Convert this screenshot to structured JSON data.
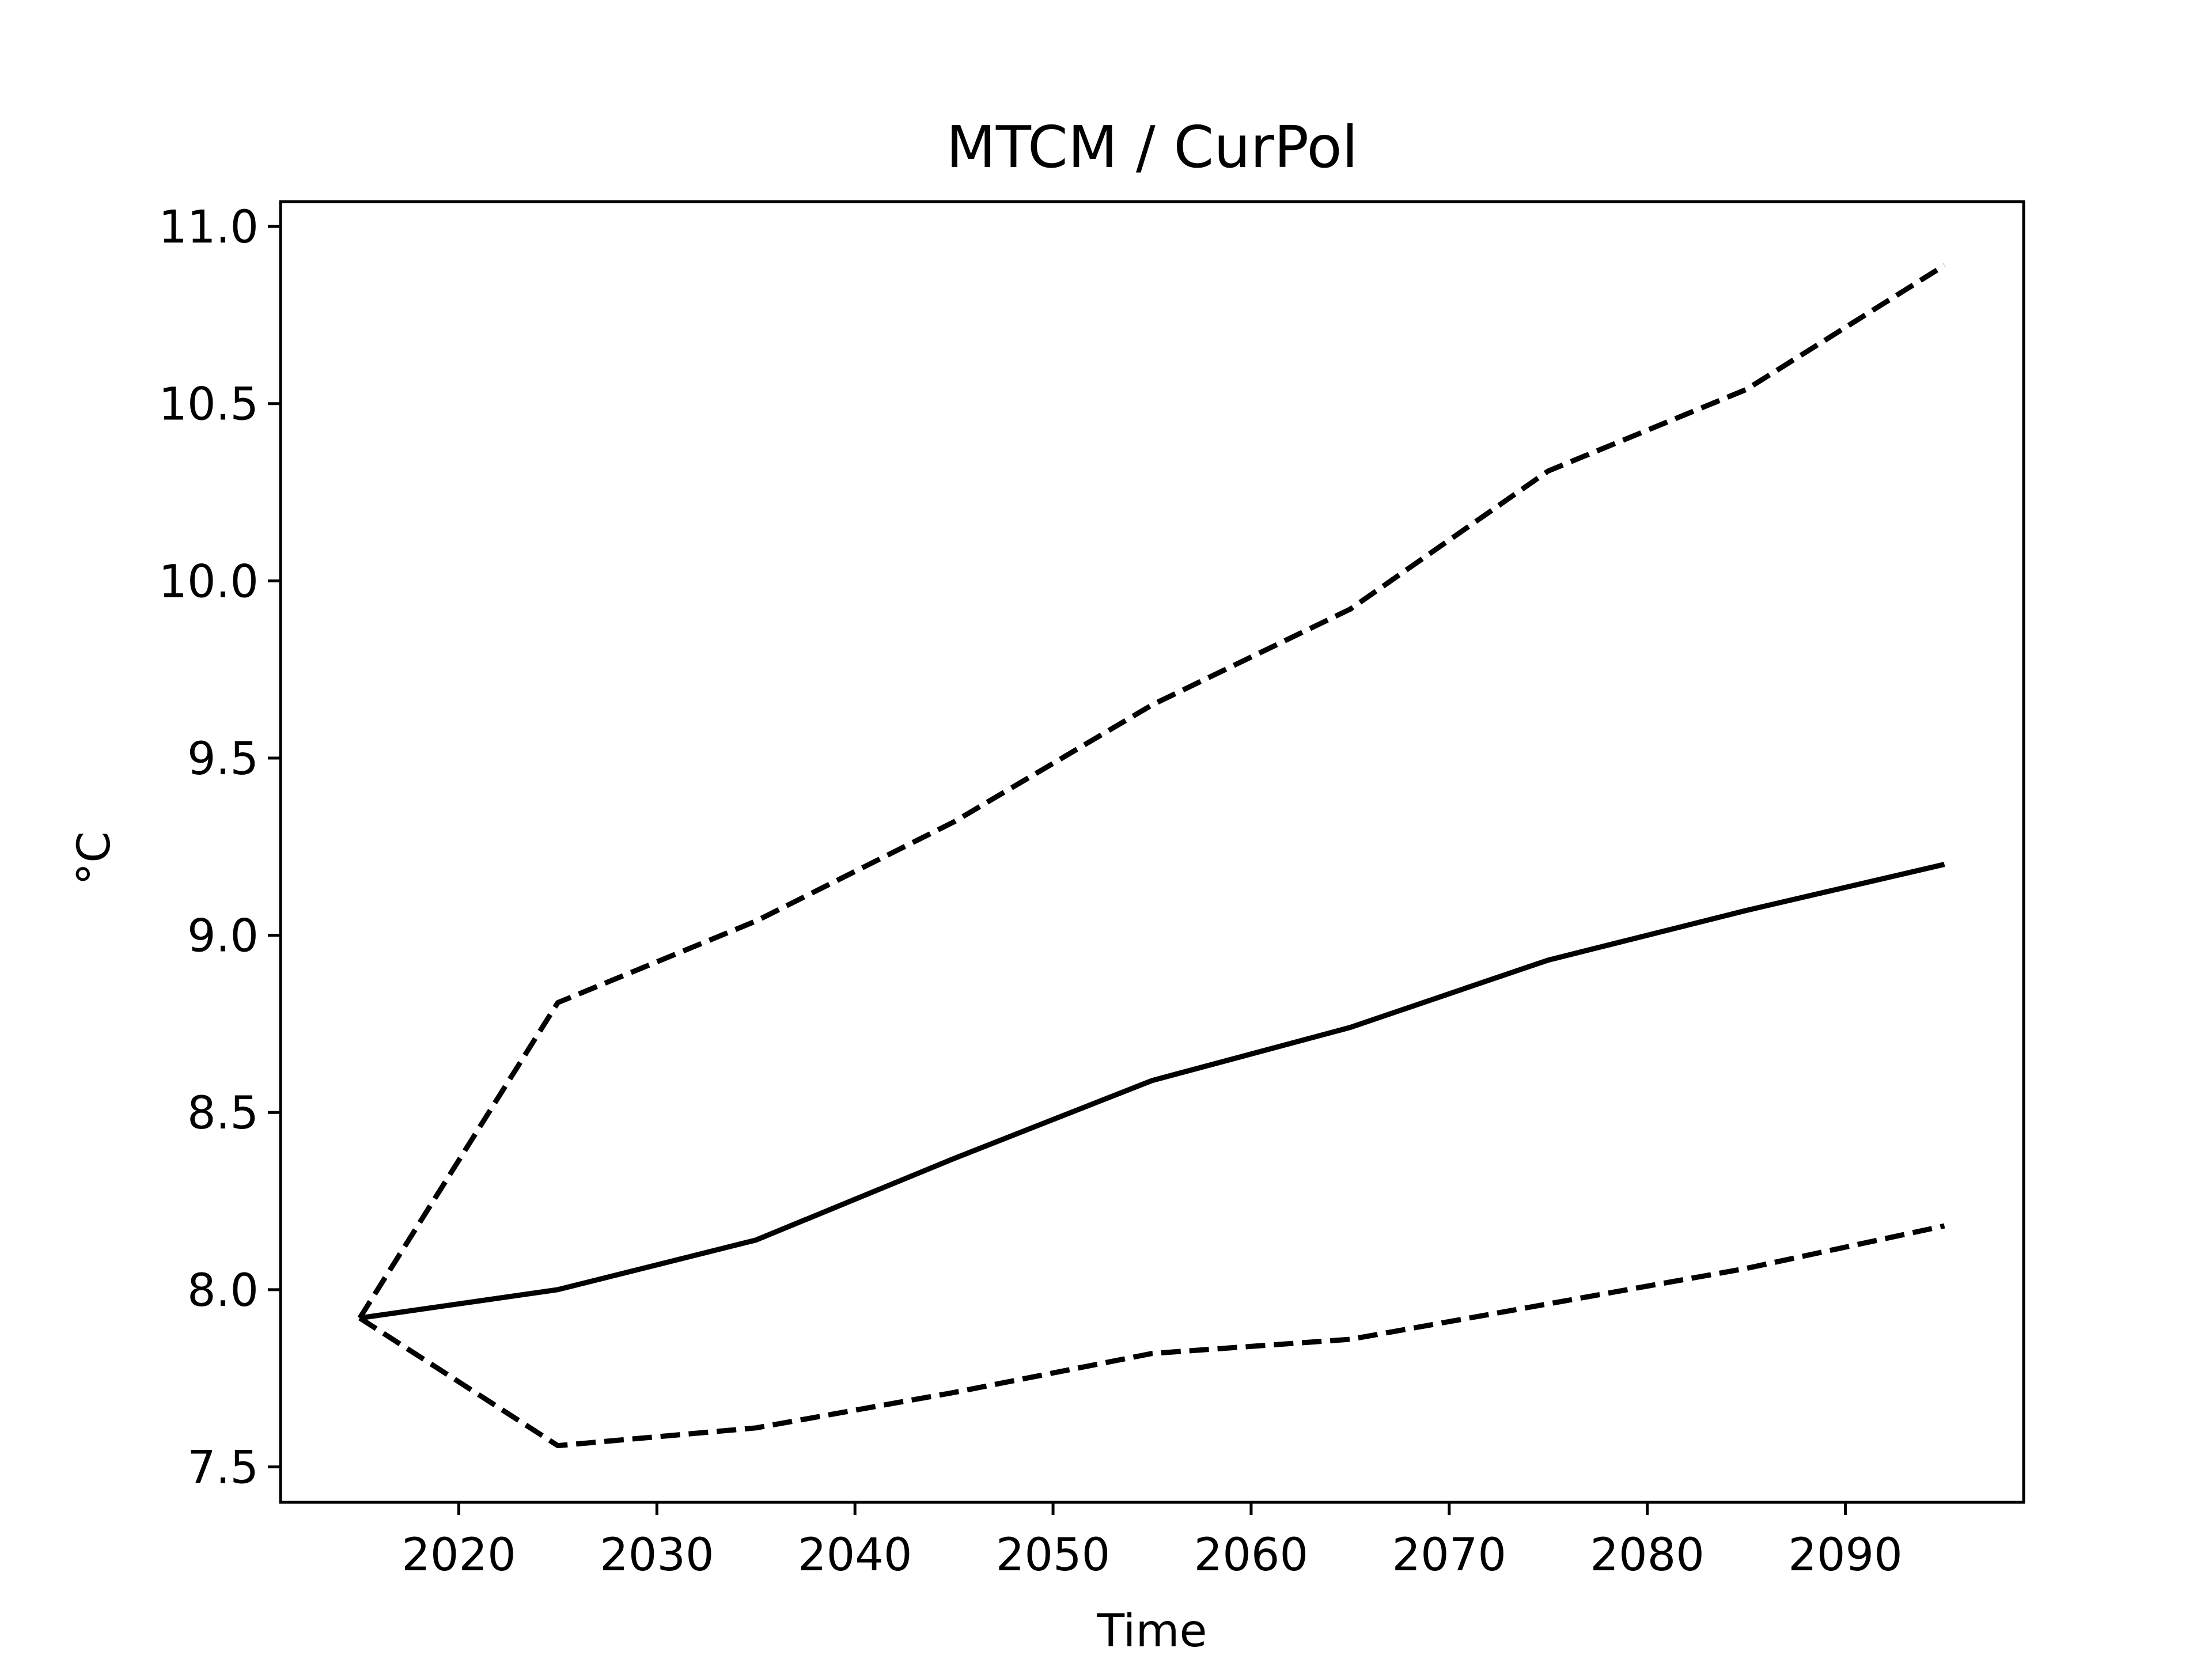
{
  "chart_data": {
    "type": "line",
    "title": "MTCM / CurPol",
    "xlabel": "Time",
    "ylabel": "°C",
    "xlim": [
      2011,
      2099
    ],
    "ylim": [
      7.4,
      11.07
    ],
    "x_ticks": [
      2020,
      2030,
      2040,
      2050,
      2060,
      2070,
      2080,
      2090
    ],
    "y_ticks": [
      7.5,
      8.0,
      8.5,
      9.0,
      9.5,
      10.0,
      10.5,
      11.0
    ],
    "y_tick_labels": [
      "7.5",
      "8.0",
      "8.5",
      "9.0",
      "9.5",
      "10.0",
      "10.5",
      "11.0"
    ],
    "x_tick_labels": [
      "2020",
      "2030",
      "2040",
      "2050",
      "2060",
      "2070",
      "2080",
      "2090"
    ],
    "grid": false,
    "legend": false,
    "x": [
      2015,
      2025,
      2035,
      2045,
      2055,
      2065,
      2075,
      2085,
      2095
    ],
    "series": [
      {
        "style": "solid",
        "color": "#000000",
        "values": [
          7.92,
          8.0,
          8.14,
          8.37,
          8.59,
          8.74,
          8.93,
          9.07,
          9.2
        ]
      },
      {
        "style": "dashed",
        "color": "#000000",
        "values": [
          7.92,
          8.81,
          9.04,
          9.32,
          9.65,
          9.92,
          10.31,
          10.54,
          10.89
        ]
      },
      {
        "style": "dashed",
        "color": "#000000",
        "values": [
          7.92,
          7.56,
          7.61,
          7.71,
          7.82,
          7.86,
          7.96,
          8.06,
          8.18
        ]
      }
    ]
  }
}
